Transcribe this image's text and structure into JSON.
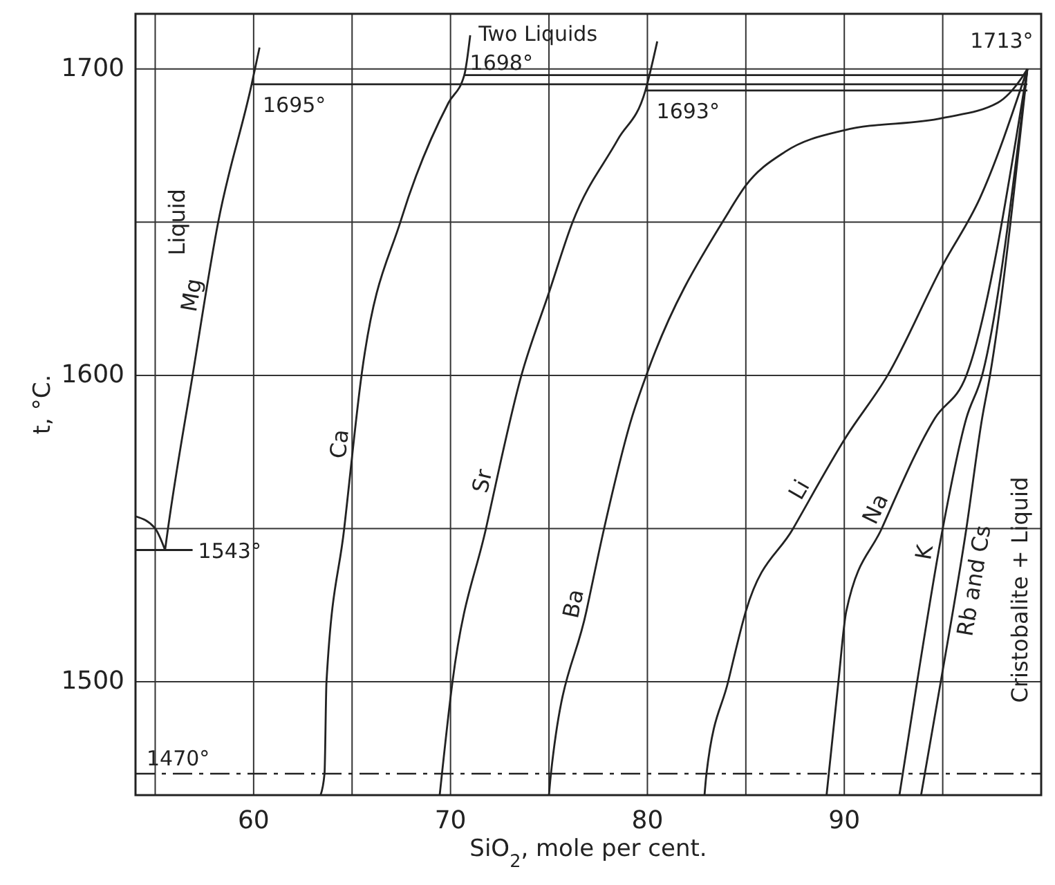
{
  "chart_data": {
    "type": "line",
    "xlabel": "SiO$_{2}$, mole per cent.",
    "ylabel": "t, °C.",
    "xlim": [
      54,
      100
    ],
    "ylim": [
      1463,
      1718
    ],
    "xticks": [
      {
        "value": 55,
        "label": null
      },
      60,
      {
        "value": 65,
        "label": null
      },
      70,
      {
        "value": 75,
        "label": null
      },
      80,
      {
        "value": 85,
        "label": null
      },
      90,
      {
        "value": 95,
        "label": null
      }
    ],
    "yticks": [
      1500,
      {
        "value": 1550,
        "label": null
      },
      1600,
      {
        "value": 1650,
        "label": null
      },
      1700
    ],
    "grid": true,
    "marker": "none",
    "line_style": "solid",
    "series": [
      {
        "name": "Mg",
        "color": "#222222",
        "x": [
          55.5,
          55.65,
          56.9,
          58.2,
          59.9,
          60.3
        ],
        "values": [
          1543,
          1550,
          1600,
          1650,
          1695,
          1707
        ]
      },
      {
        "name": "Ca",
        "color": "#222222",
        "x": [
          63.4,
          63.6,
          63.7,
          64.6,
          65.5,
          67.5,
          69.9,
          70.7,
          71.0
        ],
        "values": [
          1463,
          1470,
          1500,
          1550,
          1601,
          1651,
          1689,
          1698,
          1711
        ]
      },
      {
        "name": "Sr",
        "color": "#222222",
        "x": [
          69.45,
          70.1,
          71.8,
          73.6,
          75,
          76.2,
          78.5,
          79.9,
          80.5
        ],
        "values": [
          1463,
          1500,
          1550,
          1600,
          1627,
          1650,
          1677,
          1693,
          1709
        ]
      },
      {
        "name": "Ba",
        "color": "#222222",
        "x": [
          75.0,
          75.1,
          76.9,
          77.8,
          79.2,
          80,
          84,
          85,
          87,
          90,
          95,
          97.8,
          99,
          99.3
        ],
        "values": [
          1463,
          1470,
          1523,
          1550,
          1586,
          1601,
          1652,
          1662,
          1673,
          1680,
          1684,
          1689,
          1697,
          1700
        ]
      },
      {
        "name": "Li",
        "color": "#222222",
        "x": [
          82.9,
          83.0,
          84.1,
          85.0,
          87.4,
          90.1,
          92.2,
          95.0,
          96.9,
          99.3
        ],
        "values": [
          1463,
          1470,
          1500,
          1523,
          1550,
          1580,
          1600,
          1636,
          1658,
          1700
        ]
      },
      {
        "name": "Na",
        "color": "#222222",
        "x": [
          89.1,
          89.7,
          90.1,
          91.9,
          94.6,
          96.2,
          99.3
        ],
        "values": [
          1463,
          1500,
          1523,
          1550,
          1586,
          1600,
          1700
        ]
      },
      {
        "name": "K",
        "color": "#222222",
        "x": [
          92.8,
          93.7,
          95.0,
          96.2,
          97.0,
          99.3
        ],
        "values": [
          1463,
          1500,
          1550,
          1586,
          1600,
          1700
        ]
      },
      {
        "name": "Rb and Cs",
        "color": "#222222",
        "x": [
          93.9,
          94.9,
          96.2,
          97.0,
          97.4,
          99.3
        ],
        "values": [
          1463,
          1500,
          1550,
          1586,
          1600,
          1700
        ]
      },
      {
        "color": "#222222",
        "x": [
          59.9,
          99.3
        ],
        "values": [
          1695,
          1695
        ]
      },
      {
        "color": "#222222",
        "x": [
          70.7,
          99.3
        ],
        "values": [
          1698,
          1698
        ]
      },
      {
        "color": "#222222",
        "x": [
          79.9,
          99.3
        ],
        "values": [
          1693,
          1693
        ]
      },
      {
        "color": "#222222",
        "x": [
          54,
          55.0,
          55.5
        ],
        "values": [
          1554,
          1550,
          1543
        ]
      },
      {
        "color": "#222222",
        "x": [
          54,
          56.9
        ],
        "values": [
          1543,
          1543
        ]
      }
    ],
    "ref_lines": [
      {
        "axis": "y",
        "value": 1470,
        "label": "1470°",
        "line_style": "dashed",
        "color": "#222222"
      }
    ],
    "annotations": [
      {
        "text": "1695°",
        "x": 59.9,
        "y": 1695
      },
      {
        "text": "1698°",
        "x": 70.7,
        "y": 1698
      },
      {
        "text": "1693°",
        "x": 79.9,
        "y": 1693
      },
      "1713°",
      {
        "text": "1543°",
        "x": 56.9,
        "y": 1543
      },
      {
        "text": "Two Liquids",
        "x": 71.0,
        "y": 1711
      },
      "Liquid",
      "Cristobalite + Liquid"
    ]
  }
}
